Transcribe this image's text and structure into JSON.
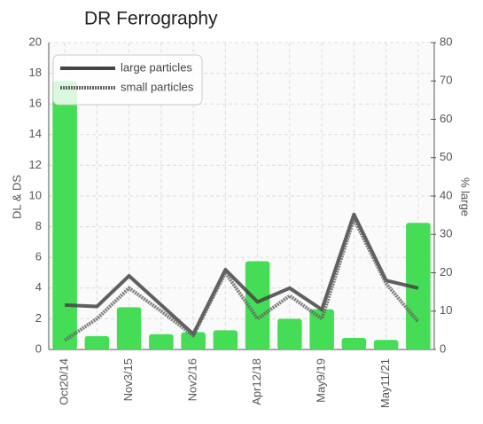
{
  "chart_data": {
    "type": "combo",
    "title": "DR Ferrography",
    "ylabel": "DL & DS",
    "y2label": "% large",
    "categories": [
      "Oct20/14",
      null,
      "Nov3/15",
      null,
      "Nov2/16",
      null,
      "Apr12/18",
      null,
      "May9/19",
      null,
      "May11/21",
      null
    ],
    "ylim": [
      0,
      20
    ],
    "yticks": [
      0,
      2,
      4,
      6,
      8,
      10,
      12,
      14,
      16,
      18,
      20
    ],
    "y2lim": [
      0,
      80
    ],
    "y2ticks": [
      0,
      10,
      20,
      30,
      40,
      50,
      60,
      70,
      80
    ],
    "grid": true,
    "legend": "upper left",
    "series": [
      {
        "type": "bar",
        "axis": "y2",
        "color": "#44dd55",
        "values": [
          70,
          3.5,
          11,
          4,
          4.5,
          5,
          23,
          8,
          10.5,
          3,
          2.5,
          33
        ]
      },
      {
        "type": "line",
        "name": "large particles",
        "color": "#444444",
        "values": [
          2.9,
          2.8,
          4.8,
          2.9,
          1.0,
          5.2,
          3.1,
          4.0,
          2.6,
          8.8,
          4.5,
          4.0
        ]
      },
      {
        "type": "line",
        "name": "small particles",
        "color": "#666666",
        "dashed": true,
        "values": [
          0.6,
          2.0,
          4.0,
          2.5,
          0.9,
          5.0,
          2.0,
          3.5,
          2.0,
          8.5,
          4.3,
          1.8
        ]
      }
    ]
  }
}
